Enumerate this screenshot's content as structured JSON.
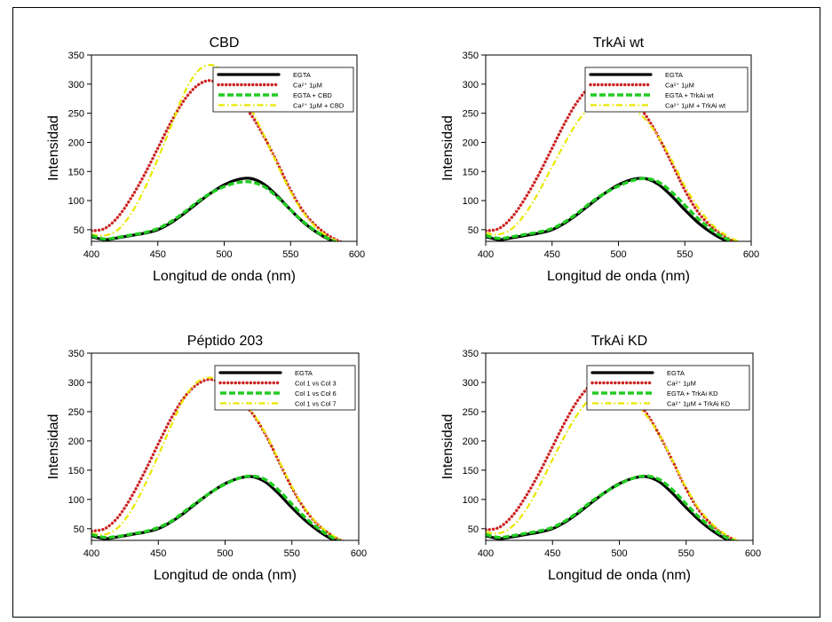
{
  "chart_data": [
    {
      "type": "line",
      "title": "CBD",
      "xlabel": "Longitud de onda (nm)",
      "ylabel": "Intensidad",
      "xlim": [
        400,
        600
      ],
      "ylim": [
        30,
        350
      ],
      "xticks": [
        "400",
        "450",
        "500",
        "550",
        "600"
      ],
      "yticks": [
        "50",
        "100",
        "150",
        "200",
        "250",
        "300",
        "350"
      ],
      "legend_position": "top-right",
      "series": [
        {
          "name": "EGTA",
          "color": "#000000",
          "style": "solid",
          "x": [
            400,
            410,
            420,
            430,
            440,
            450,
            460,
            470,
            480,
            490,
            500,
            510,
            520,
            530,
            540,
            550,
            560,
            570,
            580,
            590,
            600
          ],
          "y": [
            38,
            33,
            36,
            40,
            44,
            50,
            62,
            78,
            96,
            113,
            127,
            136,
            138,
            128,
            108,
            84,
            62,
            45,
            32,
            23,
            18
          ]
        },
        {
          "name": "Ca²⁺ 1µM",
          "color": "#cc2222",
          "style": "dotted",
          "x": [
            400,
            410,
            420,
            430,
            440,
            450,
            460,
            470,
            480,
            490,
            500,
            510,
            520,
            530,
            540,
            550,
            560,
            570,
            580,
            590,
            600
          ],
          "y": [
            48,
            52,
            72,
            105,
            145,
            190,
            235,
            273,
            298,
            306,
            292,
            272,
            248,
            210,
            165,
            118,
            80,
            55,
            38,
            27,
            18
          ]
        },
        {
          "name": "EGTA + CBD",
          "color": "#22cc22",
          "style": "dashed",
          "x": [
            400,
            410,
            420,
            430,
            440,
            450,
            460,
            470,
            480,
            490,
            500,
            510,
            520,
            530,
            540,
            550,
            560,
            570,
            580,
            590,
            600
          ],
          "y": [
            40,
            34,
            37,
            41,
            45,
            52,
            64,
            80,
            98,
            113,
            124,
            131,
            132,
            124,
            106,
            84,
            63,
            46,
            33,
            24,
            18
          ]
        },
        {
          "name": "Ca²⁺ 1µM + CBD",
          "color": "#e8e800",
          "style": "dashdot",
          "x": [
            400,
            410,
            420,
            430,
            440,
            450,
            460,
            470,
            480,
            490,
            500,
            510,
            520,
            530,
            540,
            550,
            560,
            570,
            580,
            590,
            600
          ],
          "y": [
            42,
            40,
            50,
            78,
            120,
            172,
            228,
            285,
            322,
            333,
            320,
            292,
            258,
            212,
            162,
            115,
            78,
            52,
            36,
            26,
            17
          ]
        }
      ]
    },
    {
      "type": "line",
      "title": "TrkAi wt",
      "xlabel": "Longitud de onda (nm)",
      "ylabel": "Intensidad",
      "xlim": [
        400,
        600
      ],
      "ylim": [
        30,
        350
      ],
      "xticks": [
        "400",
        "450",
        "500",
        "550",
        "600"
      ],
      "yticks": [
        "50",
        "100",
        "150",
        "200",
        "250",
        "300",
        "350"
      ],
      "legend_position": "top-right",
      "series": [
        {
          "name": "EGTA",
          "color": "#000000",
          "style": "solid",
          "x": [
            400,
            410,
            420,
            430,
            440,
            450,
            460,
            470,
            480,
            490,
            500,
            510,
            520,
            530,
            540,
            550,
            560,
            570,
            580,
            590,
            600
          ],
          "y": [
            38,
            33,
            36,
            40,
            44,
            50,
            62,
            78,
            96,
            113,
            127,
            136,
            138,
            128,
            108,
            84,
            62,
            45,
            32,
            23,
            18
          ]
        },
        {
          "name": "Ca²⁺ 1µM",
          "color": "#cc2222",
          "style": "dotted",
          "x": [
            400,
            410,
            420,
            430,
            440,
            450,
            460,
            470,
            480,
            490,
            500,
            510,
            520,
            530,
            540,
            550,
            560,
            570,
            580,
            590,
            600
          ],
          "y": [
            48,
            52,
            72,
            105,
            145,
            190,
            235,
            273,
            298,
            306,
            292,
            272,
            248,
            210,
            165,
            118,
            80,
            55,
            38,
            27,
            18
          ]
        },
        {
          "name": "EGTA + TrkAi wt",
          "color": "#22cc22",
          "style": "dashed",
          "x": [
            400,
            410,
            420,
            430,
            440,
            450,
            460,
            470,
            480,
            490,
            500,
            510,
            520,
            530,
            540,
            550,
            560,
            570,
            580,
            590,
            600
          ],
          "y": [
            40,
            35,
            38,
            42,
            46,
            52,
            64,
            80,
            98,
            113,
            125,
            134,
            138,
            132,
            115,
            92,
            69,
            50,
            36,
            26,
            19
          ]
        },
        {
          "name": "Ca²⁺ 1µM + TrkAi wt",
          "color": "#e8e800",
          "style": "dashdot",
          "x": [
            400,
            410,
            420,
            430,
            440,
            450,
            460,
            470,
            480,
            490,
            500,
            510,
            520,
            530,
            540,
            550,
            560,
            570,
            580,
            590,
            600
          ],
          "y": [
            44,
            42,
            52,
            78,
            115,
            158,
            200,
            238,
            262,
            273,
            272,
            260,
            240,
            210,
            170,
            125,
            88,
            60,
            42,
            30,
            20
          ]
        }
      ]
    },
    {
      "type": "line",
      "title": "Péptido 203",
      "xlabel": "Longitud de onda (nm)",
      "ylabel": "Intensidad",
      "xlim": [
        400,
        600
      ],
      "ylim": [
        30,
        350
      ],
      "xticks": [
        "400",
        "450",
        "500",
        "550",
        "600"
      ],
      "yticks": [
        "50",
        "100",
        "150",
        "200",
        "250",
        "300",
        "350"
      ],
      "legend_position": "top-right",
      "series": [
        {
          "name": "EGTA",
          "color": "#000000",
          "style": "solid",
          "x": [
            400,
            410,
            420,
            430,
            440,
            450,
            460,
            470,
            480,
            490,
            500,
            510,
            520,
            530,
            540,
            550,
            560,
            570,
            580,
            590,
            600
          ],
          "y": [
            38,
            33,
            36,
            40,
            44,
            50,
            62,
            78,
            96,
            113,
            127,
            136,
            139,
            130,
            110,
            86,
            64,
            46,
            32,
            23,
            18
          ]
        },
        {
          "name": "Col 1 vs Col 3",
          "color": "#cc2222",
          "style": "dotted",
          "x": [
            400,
            410,
            420,
            430,
            440,
            450,
            460,
            470,
            480,
            490,
            500,
            510,
            520,
            530,
            540,
            550,
            560,
            570,
            580,
            590,
            600
          ],
          "y": [
            46,
            50,
            70,
            105,
            148,
            195,
            240,
            276,
            298,
            305,
            292,
            272,
            248,
            212,
            166,
            120,
            82,
            56,
            38,
            27,
            17
          ]
        },
        {
          "name": "Col 1 vs Col 6",
          "color": "#22cc22",
          "style": "dashed",
          "x": [
            400,
            410,
            420,
            430,
            440,
            450,
            460,
            470,
            480,
            490,
            500,
            510,
            520,
            530,
            540,
            550,
            560,
            570,
            580,
            590,
            600
          ],
          "y": [
            40,
            35,
            37,
            41,
            45,
            52,
            63,
            80,
            97,
            113,
            126,
            136,
            140,
            134,
            116,
            92,
            69,
            50,
            35,
            25,
            18
          ]
        },
        {
          "name": "Col 1 vs Col 7",
          "color": "#e8e800",
          "style": "dashdot",
          "x": [
            400,
            410,
            420,
            430,
            440,
            450,
            460,
            470,
            480,
            490,
            500,
            510,
            520,
            530,
            540,
            550,
            560,
            570,
            580,
            590,
            600
          ],
          "y": [
            42,
            40,
            52,
            82,
            125,
            175,
            228,
            275,
            302,
            308,
            296,
            274,
            250,
            214,
            168,
            122,
            84,
            57,
            39,
            28,
            18
          ]
        }
      ]
    },
    {
      "type": "line",
      "title": "TrkAi KD",
      "xlabel": "Longitud de onda (nm)",
      "ylabel": "Intensidad",
      "xlim": [
        400,
        600
      ],
      "ylim": [
        30,
        350
      ],
      "xticks": [
        "400",
        "450",
        "500",
        "550",
        "600"
      ],
      "yticks": [
        "50",
        "100",
        "150",
        "200",
        "250",
        "300",
        "350"
      ],
      "legend_position": "top-right",
      "series": [
        {
          "name": "EGTA",
          "color": "#000000",
          "style": "solid",
          "x": [
            400,
            410,
            420,
            430,
            440,
            450,
            460,
            470,
            480,
            490,
            500,
            510,
            520,
            530,
            540,
            550,
            560,
            570,
            580,
            590,
            600
          ],
          "y": [
            38,
            33,
            36,
            40,
            44,
            50,
            62,
            78,
            96,
            113,
            127,
            136,
            139,
            130,
            110,
            86,
            64,
            46,
            32,
            23,
            18
          ]
        },
        {
          "name": "Ca²⁺ 1µM",
          "color": "#cc2222",
          "style": "dotted",
          "x": [
            400,
            410,
            420,
            430,
            440,
            450,
            460,
            470,
            480,
            490,
            500,
            510,
            520,
            530,
            540,
            550,
            560,
            570,
            580,
            590,
            600
          ],
          "y": [
            48,
            52,
            72,
            105,
            145,
            190,
            235,
            273,
            298,
            306,
            292,
            272,
            248,
            210,
            165,
            118,
            80,
            55,
            38,
            27,
            18
          ]
        },
        {
          "name": "EGTA + TrkAi KD",
          "color": "#22cc22",
          "style": "dashed",
          "x": [
            400,
            410,
            420,
            430,
            440,
            450,
            460,
            470,
            480,
            490,
            500,
            510,
            520,
            530,
            540,
            550,
            560,
            570,
            580,
            590,
            600
          ],
          "y": [
            40,
            35,
            38,
            42,
            46,
            52,
            64,
            80,
            98,
            113,
            126,
            136,
            140,
            134,
            116,
            92,
            69,
            50,
            35,
            25,
            18
          ]
        },
        {
          "name": "Ca²⁺ 1µM + TrkAi KD",
          "color": "#e8e800",
          "style": "dashdot",
          "x": [
            400,
            410,
            420,
            430,
            440,
            450,
            460,
            470,
            480,
            490,
            500,
            510,
            520,
            530,
            540,
            550,
            560,
            570,
            580,
            590,
            600
          ],
          "y": [
            44,
            42,
            54,
            82,
            122,
            168,
            212,
            250,
            276,
            288,
            282,
            266,
            244,
            210,
            166,
            120,
            83,
            57,
            39,
            28,
            18
          ]
        }
      ]
    }
  ]
}
